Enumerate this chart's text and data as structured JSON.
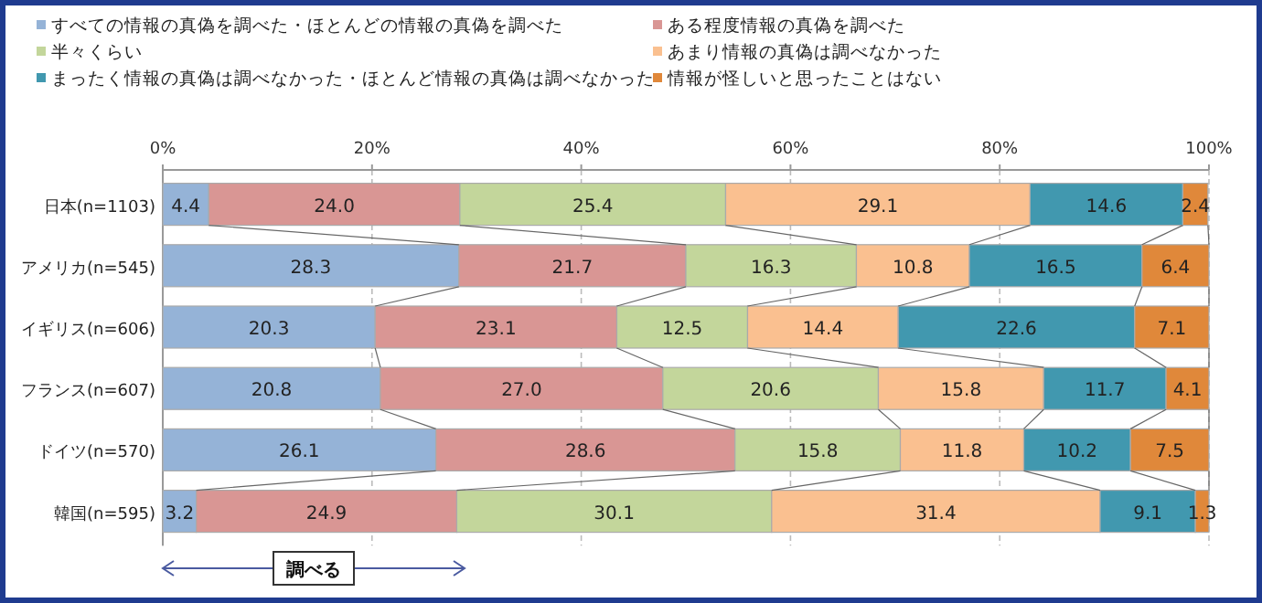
{
  "chart_data": {
    "type": "bar",
    "orientation": "horizontal",
    "stacked": true,
    "categories": [
      "日本(n=1103)",
      "アメリカ(n=545)",
      "イギリス(n=606)",
      "フランス(n=607)",
      "ドイツ(n=570)",
      "韓国(n=595)"
    ],
    "series": [
      {
        "name": "すべての情報の真偽を調べた・ほとんどの情報の真偽を調べた",
        "color": "#95b3d7",
        "values": [
          4.4,
          28.3,
          20.3,
          20.8,
          26.1,
          3.2
        ],
        "value_labels": [
          "4.4",
          "28.3",
          "20.3",
          "20.8",
          "26.1",
          "3.2"
        ]
      },
      {
        "name": "ある程度情報の真偽を調べた",
        "color": "#d99694",
        "values": [
          24.0,
          21.7,
          23.1,
          27.0,
          28.6,
          24.9
        ],
        "value_labels": [
          "24.0",
          "21.7",
          "23.1",
          "27.0",
          "28.6",
          "24.9"
        ]
      },
      {
        "name": "半々くらい",
        "color": "#c3d69b",
        "values": [
          25.4,
          16.3,
          12.5,
          20.6,
          15.8,
          30.1
        ],
        "value_labels": [
          "25.4",
          "16.3",
          "12.5",
          "20.6",
          "15.8",
          "30.1"
        ]
      },
      {
        "name": "あまり情報の真偽は調べなかった",
        "color": "#fac090",
        "values": [
          29.1,
          10.8,
          14.4,
          15.8,
          11.8,
          31.4
        ],
        "value_labels": [
          "29.1",
          "10.8",
          "14.4",
          "15.8",
          "11.8",
          "31.4"
        ]
      },
      {
        "name": "まったく情報の真偽は調べなかった・ほとんど情報の真偽は調べなかった",
        "color": "#4198af",
        "values": [
          14.6,
          16.5,
          22.6,
          11.7,
          10.2,
          9.1
        ],
        "value_labels": [
          "14.6",
          "16.5",
          "22.6",
          "11.7",
          "10.2",
          "9.1"
        ]
      },
      {
        "name": "情報が怪しいと思ったことはない",
        "color": "#e0883a",
        "values": [
          2.4,
          6.4,
          7.1,
          4.1,
          7.5,
          1.3
        ],
        "value_labels": [
          "2.4",
          "6.4",
          "7.1",
          "4.1",
          "7.5",
          "1.3"
        ]
      }
    ],
    "xlim": [
      0,
      100
    ],
    "xticks": [
      {
        "value": 0,
        "label": "0%"
      },
      {
        "value": 20,
        "label": "20%"
      },
      {
        "value": 40,
        "label": "40%"
      },
      {
        "value": 60,
        "label": "60%"
      },
      {
        "value": 80,
        "label": "80%"
      },
      {
        "value": 100,
        "label": "100%"
      }
    ],
    "grid": "x",
    "legend": "top",
    "annotations": [
      "調べる"
    ]
  }
}
